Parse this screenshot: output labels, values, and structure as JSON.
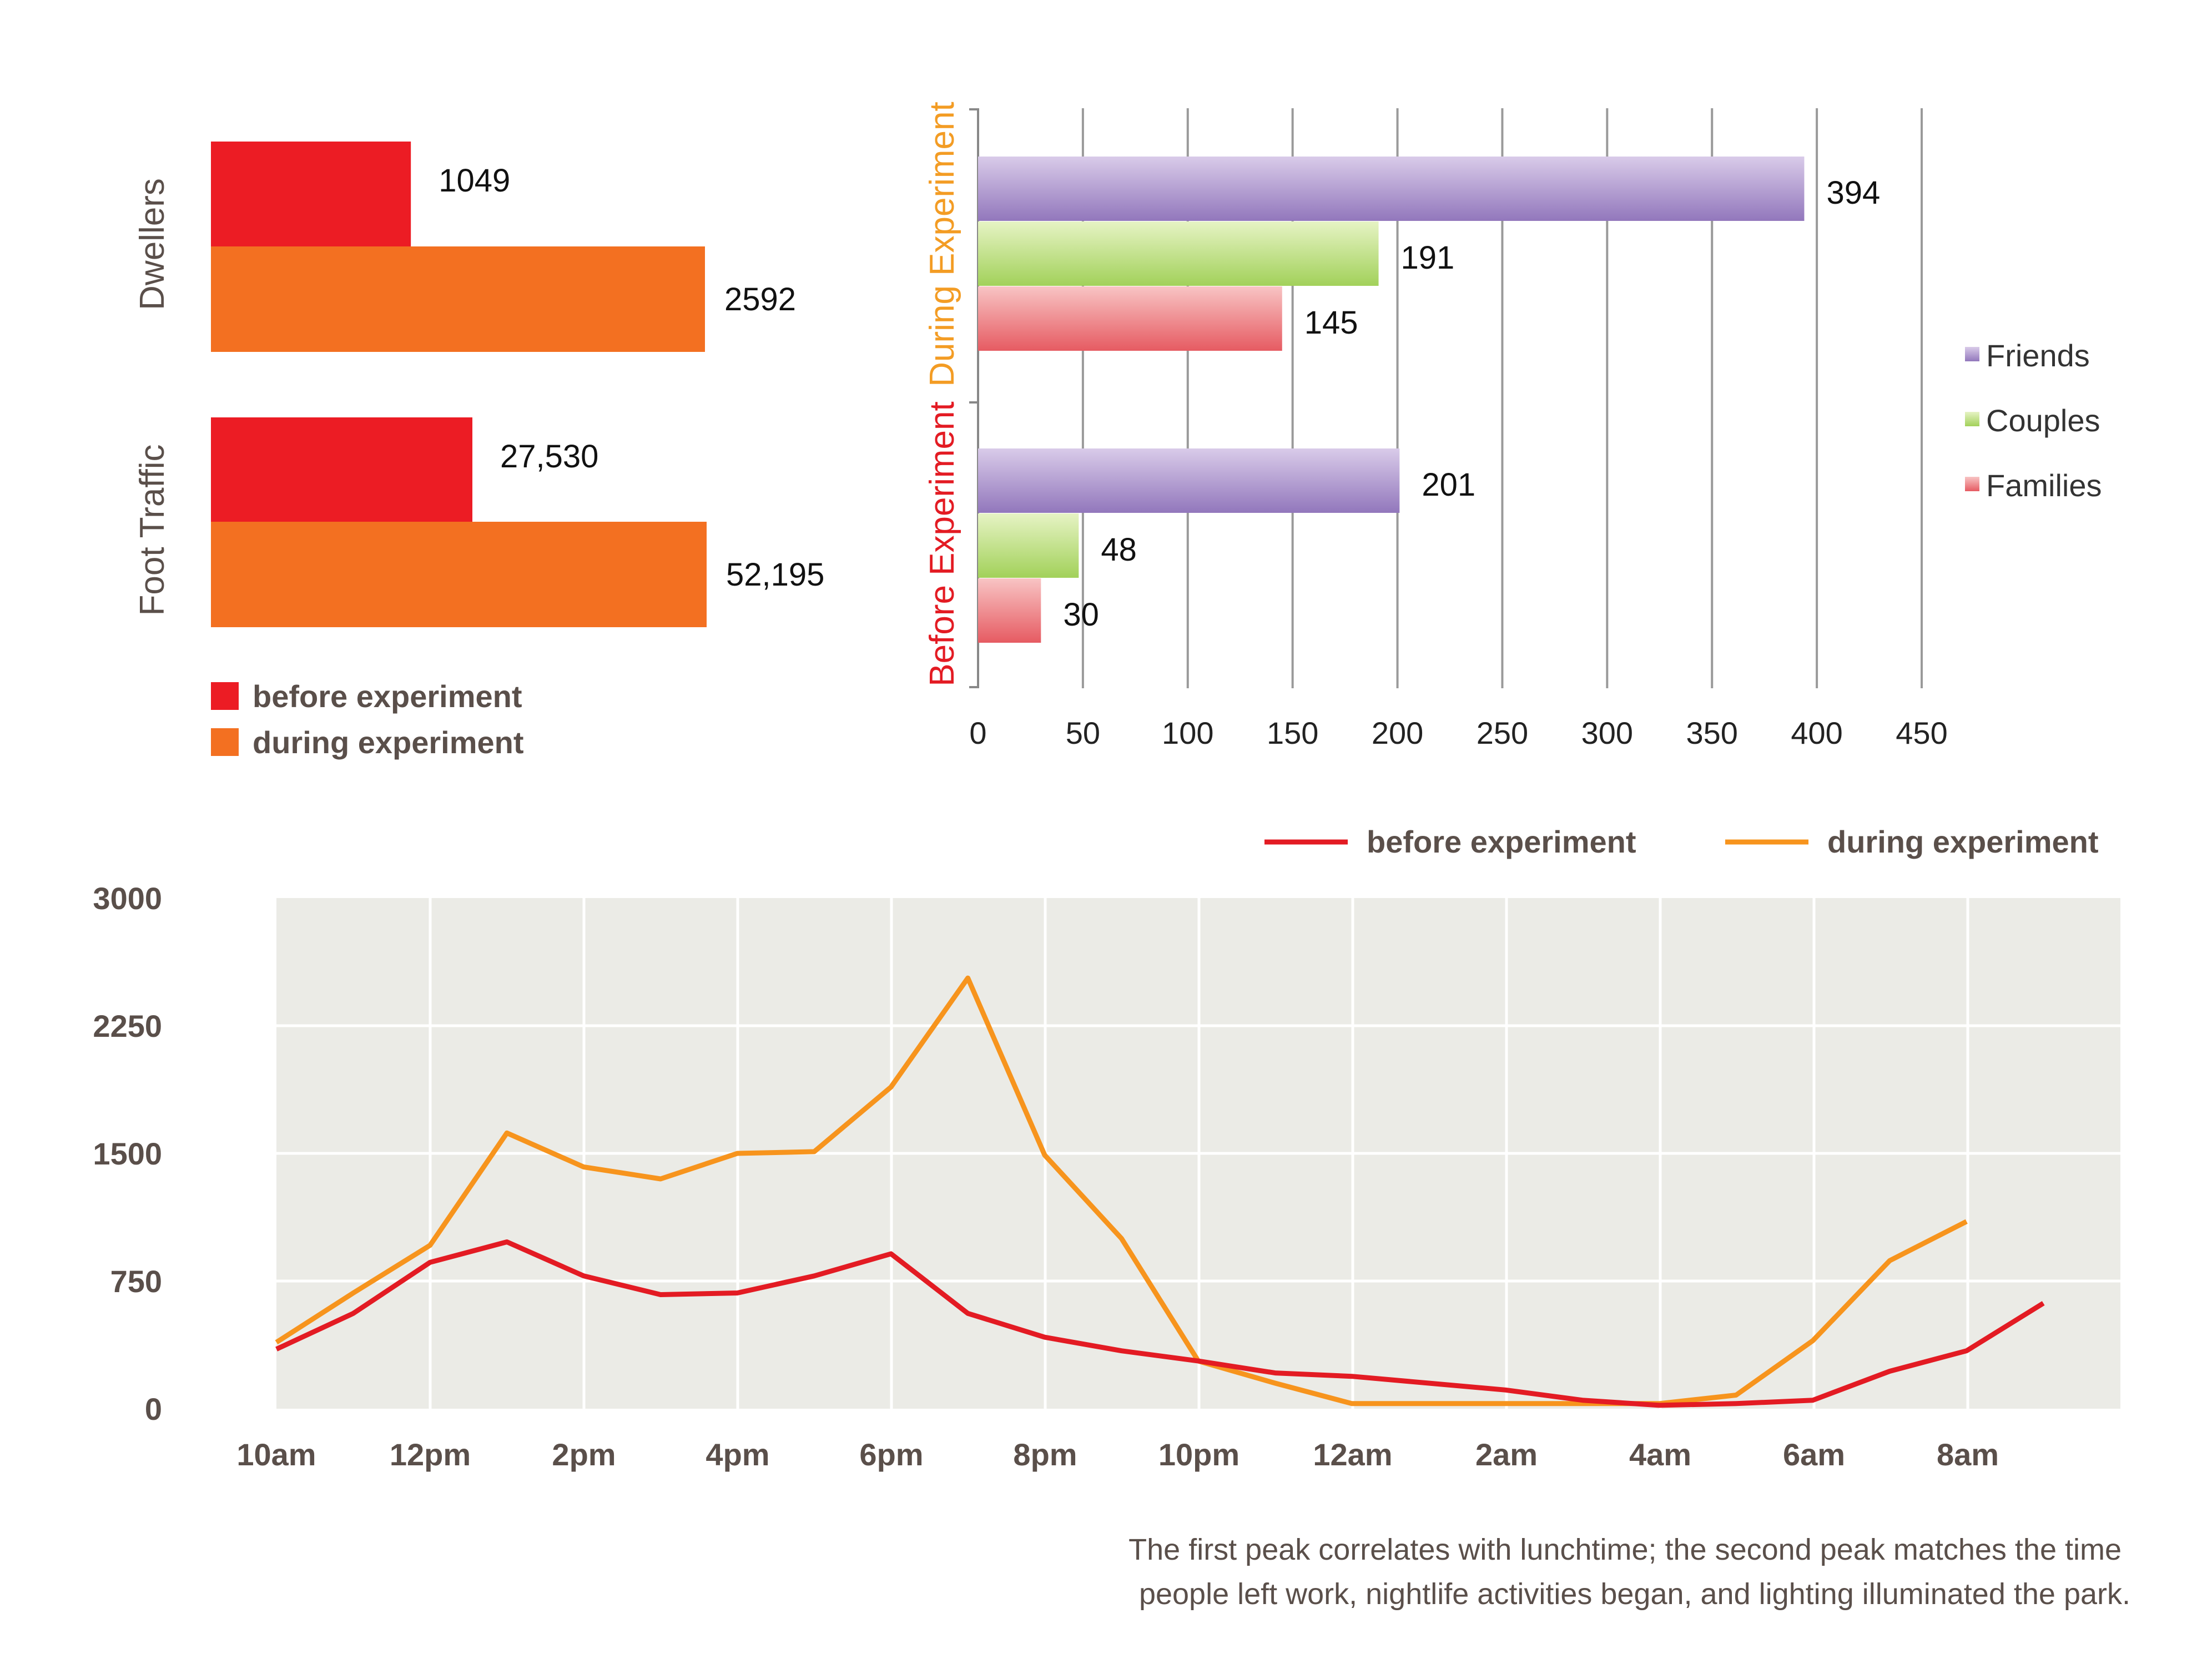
{
  "chart_data": [
    {
      "type": "bar",
      "orientation": "horizontal",
      "categories": [
        "Dwellers",
        "Foot Traffic"
      ],
      "series": [
        {
          "name": "before experiment",
          "color": "#ec1c24",
          "values": [
            1049,
            27530
          ],
          "labels": [
            "1049",
            "27,530"
          ]
        },
        {
          "name": "during experiment",
          "color": "#f37021",
          "values": [
            2592,
            52195
          ],
          "labels": [
            "2592",
            "52,195"
          ]
        }
      ],
      "legend": [
        "before experiment",
        "during experiment"
      ]
    },
    {
      "type": "bar",
      "orientation": "horizontal",
      "groups": [
        "During Experiment",
        "Before Experiment"
      ],
      "group_colors": [
        "#f39c24",
        "#e31b23"
      ],
      "series": [
        {
          "name": "Friends",
          "color": "#9b82c2",
          "values": [
            394,
            201
          ]
        },
        {
          "name": "Couples",
          "color": "#a8d460",
          "values": [
            191,
            48
          ]
        },
        {
          "name": "Families",
          "color": "#e8636a",
          "values": [
            145,
            30
          ]
        }
      ],
      "xlim": [
        0,
        450
      ],
      "xticks": [
        "0",
        "50",
        "100",
        "150",
        "200",
        "250",
        "300",
        "350",
        "400",
        "450"
      ],
      "legend": [
        "Friends",
        "Couples",
        "Families"
      ]
    },
    {
      "type": "line",
      "xticks": [
        "10am",
        "12pm",
        "2pm",
        "4pm",
        "6pm",
        "8pm",
        "10pm",
        "12am",
        "2am",
        "4am",
        "6am",
        "8am"
      ],
      "yticks": [
        "3000",
        "2250",
        "1500",
        "750",
        "0"
      ],
      "ylim": [
        0,
        3000
      ],
      "x_hours": [
        0,
        1,
        2,
        3,
        4,
        5,
        6,
        7,
        8,
        9,
        10,
        11,
        12,
        13,
        14,
        15,
        16,
        17,
        18,
        19,
        20,
        21,
        22,
        23
      ],
      "series": [
        {
          "name": "before experiment",
          "color": "#e31b23",
          "values": [
            350,
            560,
            860,
            980,
            780,
            670,
            680,
            780,
            910,
            560,
            420,
            340,
            280,
            210,
            190,
            150,
            110,
            50,
            20,
            30,
            50,
            220,
            340,
            620
          ]
        },
        {
          "name": "during experiment",
          "color": "#f7941d",
          "values": [
            390,
            680,
            960,
            1620,
            1420,
            1350,
            1500,
            1510,
            1890,
            2530,
            1490,
            1000,
            280,
            150,
            30,
            30,
            30,
            30,
            30,
            80,
            400,
            870,
            1100,
            null
          ]
        }
      ],
      "legend": [
        "before experiment",
        "during experiment"
      ],
      "caption": [
        "The first peak correlates with lunchtime; the second peak matches the time",
        "people left work, nightlife activities began, and lighting illuminated the park."
      ]
    }
  ]
}
